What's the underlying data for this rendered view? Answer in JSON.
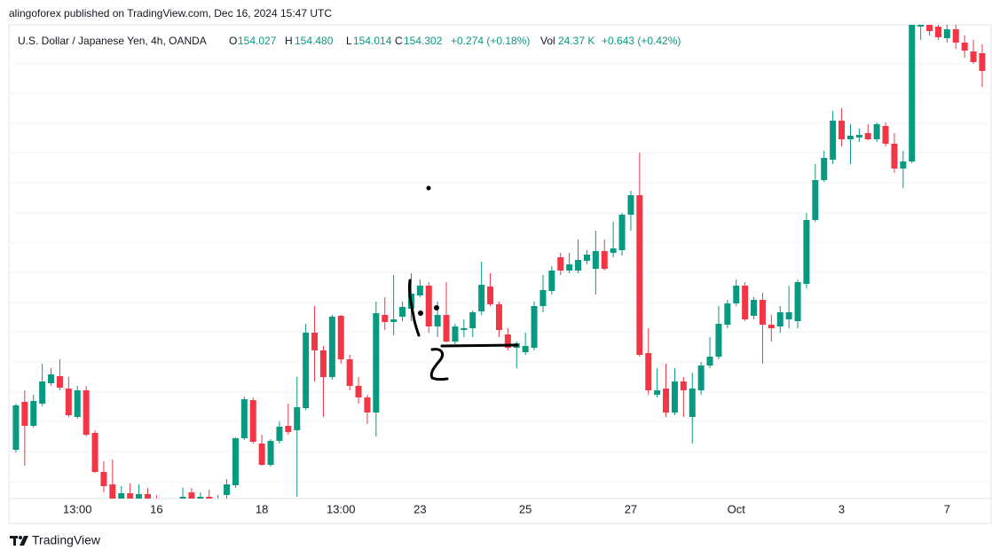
{
  "chart_data": {
    "type": "candlestick",
    "title": "alingoforex published on TradingView.com, Dec 16, 2024 15:47 UTC",
    "symbol": "U.S. Dollar / Japanese Yen, 4h, OANDA",
    "legend": {
      "open_label": "O",
      "open": "154.027",
      "high_label": "H",
      "high": "154.480",
      "low_label": "L",
      "low": "154.014",
      "close_label": "C",
      "close": "154.302",
      "change": "+0.274 (+0.18%)",
      "volume_label": "Vol",
      "volume": "24.37 K",
      "volume_change": "+0.643 (+0.42%)"
    },
    "brand": "TradingView",
    "up_color": "#089981",
    "down_color": "#f23645",
    "ylim": [
      138.76,
      149.44
    ],
    "categories": [
      null,
      null,
      null,
      null,
      null,
      null,
      null,
      "13:00",
      null,
      null,
      null,
      null,
      null,
      null,
      null,
      null,
      "16",
      null,
      null,
      null,
      null,
      null,
      null,
      null,
      null,
      null,
      null,
      null,
      "18",
      null,
      null,
      null,
      null,
      null,
      null,
      null,
      null,
      "13:00",
      null,
      null,
      null,
      null,
      null,
      null,
      null,
      null,
      "23",
      null,
      null,
      null,
      null,
      null,
      null,
      null,
      null,
      null,
      null,
      null,
      "25",
      null,
      null,
      null,
      null,
      null,
      null,
      null,
      null,
      null,
      null,
      null,
      "27",
      null,
      null,
      null,
      null,
      null,
      null,
      null,
      null,
      null,
      null,
      null,
      "Oct",
      null,
      null,
      null,
      null,
      null,
      null,
      null,
      null,
      null,
      null,
      null,
      "3",
      null,
      null,
      null,
      null,
      null,
      null,
      null,
      null,
      null,
      null,
      null,
      "7",
      null,
      null,
      null,
      null
    ],
    "open": [
      139.86,
      140.94,
      140.4,
      140.9,
      141.36,
      141.52,
      141.24,
      140.6,
      141.2,
      140.24,
      139.36,
      139.08,
      138.7,
      138.88,
      138.68,
      138.86,
      138.64,
      138.4,
      138.1,
      138.3,
      138.9,
      138.7,
      138.8,
      138.64,
      138.84,
      139.06,
      140.12,
      140.98,
      140.0,
      139.52,
      140.06,
      140.4,
      140.3,
      140.8,
      142.5,
      142.1,
      141.5,
      142.88,
      141.9,
      141.3,
      141.04,
      140.7,
      142.9,
      142.74,
      142.86,
      143.04,
      143.34,
      143.56,
      142.64,
      142.9,
      142.3,
      142.56,
      142.6,
      142.98,
      143.54,
      143.14,
      142.46,
      142.16,
      142.06,
      142.16,
      143.1,
      143.44,
      144.2,
      143.9,
      143.9,
      144.12,
      143.94,
      144.34,
      144.3,
      144.36,
      145.16,
      145.6,
      142.04,
      141.1,
      141.24,
      140.7,
      141.4,
      140.6,
      141.2,
      141.76,
      141.96,
      142.68,
      143.16,
      143.56,
      142.88,
      143.24,
      142.68,
      142.64,
      142.8,
      142.76,
      143.6,
      145.04,
      145.94,
      146.4,
      147.28,
      146.86,
      146.9,
      147.0,
      146.86,
      147.16,
      146.76,
      146.2,
      146.36,
      149.4,
      149.6,
      149.4,
      149.14,
      149.34,
      149.04,
      148.84,
      148.8
    ],
    "high": [
      140.9,
      141.2,
      141.1,
      141.8,
      141.7,
      141.9,
      141.5,
      141.3,
      141.3,
      140.3,
      139.6,
      139.64,
      139.04,
      139.1,
      139.08,
      139.0,
      138.84,
      138.6,
      138.5,
      139.0,
      139.0,
      138.9,
      138.96,
      138.84,
      139.2,
      140.14,
      141.06,
      141.04,
      140.2,
      140.1,
      140.5,
      140.9,
      141.5,
      142.7,
      143.1,
      142.2,
      142.9,
      142.9,
      142.0,
      141.5,
      141.1,
      143.2,
      143.3,
      143.8,
      143.2,
      143.84,
      143.7,
      143.64,
      143.2,
      143.64,
      142.7,
      142.8,
      143.0,
      144.1,
      143.84,
      143.2,
      142.6,
      142.3,
      142.5,
      143.2,
      143.8,
      144.0,
      144.3,
      144.3,
      144.6,
      144.36,
      144.8,
      144.6,
      145.0,
      145.2,
      145.7,
      146.56,
      142.6,
      141.7,
      141.8,
      141.7,
      141.5,
      141.6,
      141.84,
      142.4,
      143.1,
      143.24,
      143.7,
      143.64,
      143.3,
      143.4,
      142.9,
      143.1,
      143.56,
      143.7,
      145.2,
      146.3,
      146.6,
      147.5,
      147.56,
      147.2,
      147.1,
      147.2,
      147.24,
      147.24,
      147.0,
      146.6,
      149.8,
      149.9,
      149.8,
      149.7,
      149.5,
      149.5,
      149.2,
      149.1,
      149.0
    ],
    "low": [
      139.8,
      139.5,
      140.36,
      140.84,
      141.3,
      141.2,
      140.6,
      140.56,
      140.16,
      139.34,
      138.9,
      138.68,
      138.6,
      138.64,
      138.56,
      138.6,
      138.3,
      138.0,
      137.9,
      138.2,
      138.6,
      138.5,
      138.56,
      138.5,
      138.7,
      139.0,
      140.08,
      140.0,
      139.5,
      139.48,
      140.0,
      140.2,
      138.8,
      140.76,
      141.4,
      140.6,
      141.44,
      141.8,
      141.2,
      140.9,
      140.44,
      140.16,
      142.56,
      142.44,
      142.76,
      142.76,
      143.3,
      142.5,
      142.4,
      142.28,
      142.24,
      142.4,
      142.4,
      142.9,
      143.1,
      142.4,
      142.1,
      141.7,
      142.0,
      142.1,
      142.96,
      143.36,
      143.8,
      143.84,
      143.84,
      144.04,
      143.36,
      143.9,
      144.2,
      144.24,
      144.8,
      141.96,
      141.1,
      141.04,
      140.6,
      140.64,
      140.6,
      140.0,
      141.1,
      141.7,
      141.9,
      142.6,
      143.1,
      142.76,
      142.8,
      141.8,
      142.3,
      142.5,
      142.6,
      142.6,
      143.5,
      145.0,
      145.9,
      146.3,
      146.7,
      146.3,
      146.8,
      146.84,
      146.8,
      146.7,
      146.1,
      145.76,
      146.32,
      149.1,
      149.2,
      149.1,
      149.04,
      148.9,
      148.7,
      148.56,
      148.04
    ],
    "close": [
      140.86,
      140.4,
      140.96,
      141.4,
      141.56,
      141.26,
      140.64,
      141.2,
      140.2,
      139.36,
      139.04,
      138.7,
      138.88,
      138.68,
      138.86,
      138.64,
      138.4,
      138.1,
      138.3,
      138.8,
      138.7,
      138.8,
      138.64,
      138.76,
      139.08,
      140.12,
      141.0,
      140.04,
      139.52,
      140.06,
      140.38,
      140.26,
      140.82,
      142.5,
      142.1,
      141.5,
      142.86,
      141.9,
      141.3,
      141.04,
      140.7,
      142.94,
      142.74,
      142.8,
      143.08,
      143.38,
      143.56,
      142.64,
      142.9,
      142.3,
      142.64,
      142.6,
      142.96,
      143.58,
      143.14,
      142.56,
      142.16,
      142.26,
      142.2,
      143.1,
      143.46,
      143.9,
      143.9,
      144.04,
      144.14,
      144.26,
      144.34,
      143.94,
      144.4,
      145.16,
      145.6,
      142.0,
      141.2,
      141.2,
      140.7,
      141.4,
      141.2,
      141.24,
      141.76,
      141.96,
      142.7,
      143.16,
      143.56,
      142.8,
      143.24,
      142.68,
      142.6,
      142.96,
      142.96,
      143.64,
      145.04,
      145.94,
      146.44,
      147.28,
      146.86,
      146.94,
      146.96,
      146.86,
      147.2,
      146.76,
      146.2,
      146.36,
      149.6,
      149.7,
      149.3,
      149.16,
      149.34,
      149.04,
      148.86,
      148.6,
      148.4
    ]
  }
}
